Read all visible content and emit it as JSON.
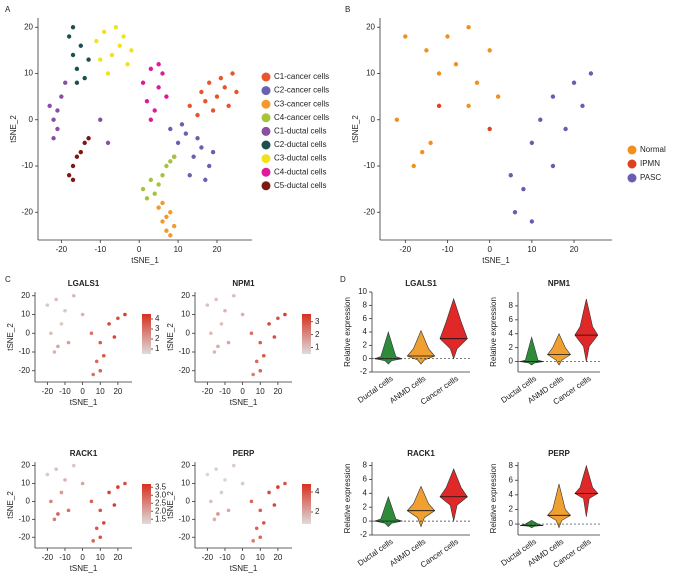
{
  "chart_data": [
    {
      "type": "scatter",
      "panel_label": "A",
      "xlabel": "tSNE_1",
      "ylabel": "tSNE_2",
      "xlim": [
        -26,
        29
      ],
      "ylim": [
        -26,
        22
      ],
      "xticks": [
        -20,
        -10,
        0,
        10,
        20
      ],
      "yticks": [
        -20,
        -10,
        0,
        10,
        20
      ],
      "series": [
        {
          "name": "C1-cancer cells",
          "color": "#e8552d",
          "x": [
            13,
            16,
            18,
            20,
            22,
            24,
            19,
            15,
            21,
            25,
            17,
            23
          ],
          "values": [
            3,
            6,
            8,
            5,
            7,
            10,
            2,
            1,
            9,
            6,
            4,
            3
          ]
        },
        {
          "name": "C2-cancer cells",
          "color": "#6b5fb0",
          "x": [
            8,
            10,
            12,
            14,
            16,
            18,
            13,
            11,
            15,
            17,
            9,
            19
          ],
          "values": [
            -2,
            -5,
            -3,
            -8,
            -6,
            -10,
            -12,
            -1,
            -4,
            -13,
            -8,
            -7
          ]
        },
        {
          "name": "C3-cancer cells",
          "color": "#f39a2b",
          "x": [
            5,
            6,
            7,
            8,
            9,
            6,
            8,
            7
          ],
          "values": [
            -19,
            -22,
            -24,
            -20,
            -23,
            -18,
            -25,
            -21
          ]
        },
        {
          "name": "C4-cancer cells",
          "color": "#a5c43a",
          "x": [
            1,
            3,
            4,
            6,
            8,
            2,
            5,
            7,
            9
          ],
          "values": [
            -15,
            -13,
            -16,
            -12,
            -9,
            -17,
            -14,
            -10,
            -8
          ]
        },
        {
          "name": "C1-ductal cells",
          "color": "#8a4ea3",
          "x": [
            -23,
            -22,
            -21,
            -20,
            -22,
            -19,
            -21,
            -10,
            -8
          ],
          "values": [
            3,
            0,
            -2,
            5,
            -4,
            8,
            2,
            0,
            -5
          ]
        },
        {
          "name": "C2-ductal cells",
          "color": "#1f4e4f",
          "x": [
            -18,
            -17,
            -16,
            -15,
            -14,
            -17,
            -13,
            -16
          ],
          "values": [
            18,
            14,
            11,
            16,
            9,
            20,
            13,
            8
          ]
        },
        {
          "name": "C3-ductal cells",
          "color": "#f2e21a",
          "x": [
            -11,
            -9,
            -7,
            -5,
            -3,
            -8,
            -10,
            -6,
            -4,
            -2
          ],
          "values": [
            17,
            19,
            14,
            16,
            12,
            10,
            13,
            20,
            18,
            15
          ]
        },
        {
          "name": "C4-ductal cells",
          "color": "#e0199a",
          "x": [
            1,
            3,
            5,
            2,
            4,
            6,
            7,
            3,
            5
          ],
          "values": [
            8,
            11,
            7,
            4,
            2,
            10,
            5,
            0,
            12
          ]
        },
        {
          "name": "C5-ductal cells",
          "color": "#7a1a14",
          "x": [
            -18,
            -17,
            -16,
            -15,
            -14,
            -13,
            -17
          ],
          "values": [
            -12,
            -10,
            -8,
            -7,
            -5,
            -4,
            -13
          ]
        }
      ]
    },
    {
      "type": "scatter",
      "panel_label": "B",
      "xlabel": "tSNE_1",
      "ylabel": "tSNE_2",
      "xlim": [
        -26,
        29
      ],
      "ylim": [
        -26,
        22
      ],
      "xticks": [
        -20,
        -10,
        0,
        10,
        20
      ],
      "yticks": [
        -20,
        -10,
        0,
        10,
        20
      ],
      "series": [
        {
          "name": "Normal",
          "color": "#f0901e",
          "x": [
            -20,
            -15,
            -10,
            -5,
            0,
            -12,
            -8,
            -3,
            2,
            -18,
            -16,
            -14,
            -22,
            -5
          ],
          "values": [
            18,
            15,
            18,
            20,
            15,
            10,
            12,
            8,
            5,
            -10,
            -7,
            -5,
            0,
            3
          ]
        },
        {
          "name": "IPMN",
          "color": "#e04020",
          "x": [
            -12,
            0
          ],
          "values": [
            3,
            -2
          ]
        },
        {
          "name": "PASC",
          "color": "#6a5cb0",
          "x": [
            15,
            20,
            24,
            10,
            15,
            8,
            6,
            10,
            18,
            5,
            12,
            22
          ],
          "values": [
            5,
            8,
            10,
            -5,
            -10,
            -15,
            -20,
            -22,
            -2,
            -12,
            0,
            3
          ]
        }
      ]
    },
    {
      "type": "feature",
      "panel_label": "C",
      "title": "LGALS1",
      "xlabel": "tSNE_1",
      "ylabel": "tSNE_2",
      "xlim": [
        -27,
        28
      ],
      "ylim": [
        -26,
        22
      ],
      "xticks": [
        -20,
        -10,
        0,
        10,
        20
      ],
      "yticks": [
        -20,
        -10,
        0,
        10,
        20
      ],
      "color_scale": [
        "#dcdcdc",
        "#d7301f"
      ],
      "clim": [
        0.5,
        4.5
      ],
      "cticks": [
        1,
        2,
        3,
        4
      ],
      "x": [
        -20,
        -15,
        -10,
        -5,
        0,
        -18,
        -12,
        -8,
        -16,
        -14,
        5,
        10,
        15,
        20,
        24,
        8,
        12,
        18,
        6,
        10
      ],
      "y": [
        15,
        18,
        12,
        20,
        10,
        0,
        5,
        -5,
        -10,
        -7,
        0,
        -5,
        5,
        8,
        10,
        -15,
        -12,
        -2,
        -22,
        -20
      ],
      "values": [
        1,
        1.2,
        1,
        1.3,
        1.5,
        1.2,
        1,
        2,
        1.5,
        1.8,
        3,
        3.5,
        4,
        3.8,
        4.2,
        3.2,
        3.6,
        4,
        3,
        3.4
      ]
    },
    {
      "type": "feature",
      "title": "NPM1",
      "xlabel": "tSNE_1",
      "ylabel": "tSNE_2",
      "xlim": [
        -27,
        28
      ],
      "ylim": [
        -26,
        22
      ],
      "xticks": [
        -20,
        -10,
        0,
        10,
        20
      ],
      "yticks": [
        -20,
        -10,
        0,
        10,
        20
      ],
      "color_scale": [
        "#dcdcdc",
        "#d7301f"
      ],
      "clim": [
        0.5,
        3.6
      ],
      "cticks": [
        1,
        2,
        3
      ],
      "x": [
        -20,
        -15,
        -10,
        -5,
        0,
        -18,
        -12,
        -8,
        -16,
        -14,
        5,
        10,
        15,
        20,
        24,
        8,
        12,
        18,
        6,
        10
      ],
      "y": [
        15,
        18,
        12,
        20,
        10,
        0,
        5,
        -5,
        -10,
        -7,
        0,
        -5,
        5,
        8,
        10,
        -15,
        -12,
        -2,
        -22,
        -20
      ],
      "values": [
        1,
        1,
        1.2,
        1,
        1.3,
        1.1,
        1,
        1.5,
        1.2,
        1.4,
        2.5,
        2.8,
        3.2,
        3,
        3.4,
        2.6,
        2.9,
        3.1,
        2.2,
        2.7
      ]
    },
    {
      "type": "feature",
      "title": "RACK1",
      "xlabel": "tSNE_1",
      "ylabel": "tSNE_2",
      "xlim": [
        -27,
        28
      ],
      "ylim": [
        -26,
        22
      ],
      "xticks": [
        -20,
        -10,
        0,
        10,
        20
      ],
      "yticks": [
        -20,
        -10,
        0,
        10,
        20
      ],
      "color_scale": [
        "#dcdcdc",
        "#d7301f"
      ],
      "clim": [
        1.2,
        3.7
      ],
      "cticks": [
        1.5,
        {
          "value": 2,
          "label": "2.0"
        },
        2.5,
        {
          "value": 3,
          "label": "3.0"
        },
        3.5
      ],
      "x": [
        -20,
        -15,
        -10,
        -5,
        0,
        -18,
        -12,
        -8,
        -16,
        -14,
        5,
        10,
        15,
        20,
        24,
        8,
        12,
        18,
        6,
        10
      ],
      "y": [
        15,
        18,
        12,
        20,
        10,
        0,
        5,
        -5,
        -10,
        -7,
        0,
        -5,
        5,
        8,
        10,
        -15,
        -12,
        -2,
        -22,
        -20
      ],
      "values": [
        1.5,
        1.6,
        1.8,
        1.5,
        2,
        2.5,
        2.2,
        2.8,
        2.6,
        3,
        3,
        3.2,
        3.4,
        3.5,
        3.3,
        3.1,
        3.4,
        3.5,
        2.9,
        3.2
      ]
    },
    {
      "type": "feature",
      "title": "PERP",
      "xlabel": "tSNE_1",
      "ylabel": "tSNE_2",
      "xlim": [
        -27,
        28
      ],
      "ylim": [
        -26,
        22
      ],
      "xticks": [
        -20,
        -10,
        0,
        10,
        20
      ],
      "yticks": [
        -20,
        -10,
        0,
        10,
        20
      ],
      "color_scale": [
        "#dcdcdc",
        "#d7301f"
      ],
      "clim": [
        0.8,
        4.8
      ],
      "cticks": [
        2,
        4
      ],
      "x": [
        -20,
        -15,
        -10,
        -5,
        0,
        -18,
        -12,
        -8,
        -16,
        -14,
        5,
        10,
        15,
        20,
        24,
        8,
        12,
        18,
        6,
        10
      ],
      "y": [
        15,
        18,
        12,
        20,
        10,
        0,
        5,
        -5,
        -10,
        -7,
        0,
        -5,
        5,
        8,
        10,
        -15,
        -12,
        -2,
        -22,
        -20
      ],
      "values": [
        1,
        1.1,
        1,
        1.2,
        1.3,
        1.5,
        1.2,
        2,
        1.8,
        2.5,
        3.5,
        3.8,
        4.2,
        4.5,
        4,
        3.6,
        4,
        4.3,
        3,
        3.5
      ]
    },
    {
      "type": "violin",
      "panel_label": "D",
      "title": "LGALS1",
      "ylabel": "Relative expression",
      "ylim": [
        -2,
        10
      ],
      "yticks": [
        -2,
        0,
        2,
        4,
        6,
        8,
        10
      ],
      "refline": 0,
      "categories": [
        "Ductal cells",
        "ANMD cells",
        "Cancer cells"
      ],
      "colors": [
        "#2e8b3a",
        "#f0a030",
        "#e02828"
      ],
      "min": [
        -0.8,
        -0.8,
        0
      ],
      "q1": [
        -0.3,
        -0.2,
        1.5
      ],
      "median": [
        0,
        0.4,
        3
      ],
      "q3": [
        0.3,
        1.5,
        5.5
      ],
      "max": [
        4,
        4.2,
        9
      ]
    },
    {
      "type": "violin",
      "title": "NPM1",
      "ylabel": "Relative expression",
      "ylim": [
        -1.5,
        10
      ],
      "yticks": [
        0,
        2,
        4,
        6,
        8
      ],
      "refline": 0,
      "categories": [
        "Ductal cells",
        "ANMD cells",
        "Cancer cells"
      ],
      "colors": [
        "#2e8b3a",
        "#f0a030",
        "#e02828"
      ],
      "min": [
        -0.5,
        -0.5,
        0
      ],
      "q1": [
        -0.2,
        0.2,
        2.2
      ],
      "median": [
        0,
        1,
        3.8
      ],
      "q3": [
        0.2,
        2,
        5
      ],
      "max": [
        3.5,
        4,
        9
      ]
    },
    {
      "type": "violin",
      "title": "RACK1",
      "ylabel": "Relative expression",
      "ylim": [
        -2,
        8.5
      ],
      "yticks": [
        -2,
        0,
        2,
        4,
        6,
        8
      ],
      "refline": 0,
      "categories": [
        "Ductal cells",
        "ANMD cells",
        "Cancer cells"
      ],
      "colors": [
        "#2e8b3a",
        "#f0a030",
        "#e02828"
      ],
      "min": [
        -0.8,
        -0.8,
        0
      ],
      "q1": [
        -0.3,
        0.5,
        2.3
      ],
      "median": [
        0,
        1.5,
        3.5
      ],
      "q3": [
        0.3,
        2.5,
        4.8
      ],
      "max": [
        3.5,
        5,
        7.5
      ]
    },
    {
      "type": "violin",
      "title": "PERP",
      "ylabel": "Relative expression",
      "ylim": [
        -1.5,
        8.5
      ],
      "yticks": [
        0,
        2,
        4,
        6,
        8
      ],
      "refline": 0,
      "categories": [
        "Ductal cells",
        "ANMD cells",
        "Cancer cells"
      ],
      "colors": [
        "#2e8b3a",
        "#f0a030",
        "#e02828"
      ],
      "min": [
        -0.5,
        -0.5,
        1
      ],
      "q1": [
        -0.3,
        0.5,
        3.5
      ],
      "median": [
        -0.2,
        1.2,
        4.2
      ],
      "q3": [
        0,
        2,
        5
      ],
      "max": [
        0.5,
        5.5,
        8
      ]
    }
  ]
}
